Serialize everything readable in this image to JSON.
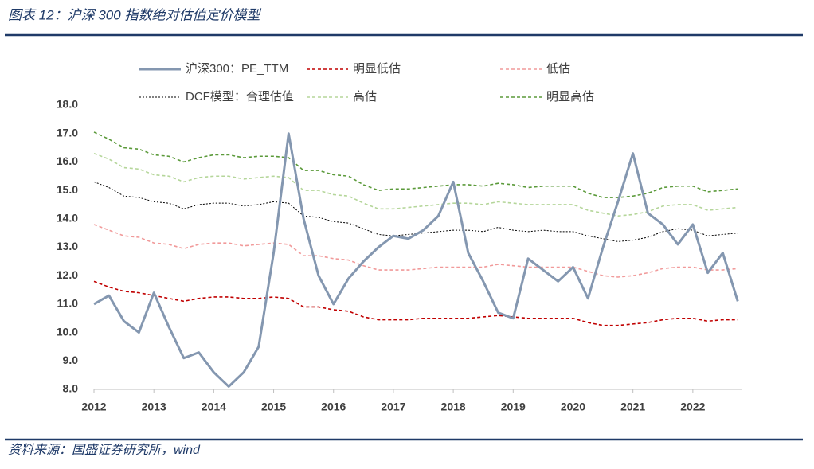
{
  "chart_data": {
    "type": "line",
    "title": "图表 12：沪深 300 指数绝对估值定价模型",
    "source": "资料来源：国盛证券研究所，wind",
    "x": [
      2012.0,
      2012.25,
      2012.5,
      2012.75,
      2013.0,
      2013.25,
      2013.5,
      2013.75,
      2014.0,
      2014.25,
      2014.5,
      2014.75,
      2015.0,
      2015.25,
      2015.5,
      2015.75,
      2016.0,
      2016.25,
      2016.5,
      2016.75,
      2017.0,
      2017.25,
      2017.5,
      2017.75,
      2018.0,
      2018.25,
      2018.5,
      2018.75,
      2019.0,
      2019.25,
      2019.5,
      2019.75,
      2020.0,
      2020.25,
      2020.5,
      2020.75,
      2021.0,
      2021.25,
      2021.5,
      2021.75,
      2022.0,
      2022.25,
      2022.5,
      2022.75
    ],
    "xlim": [
      2012,
      2022.8
    ],
    "xticks": [
      2012,
      2013,
      2014,
      2015,
      2016,
      2017,
      2018,
      2019,
      2020,
      2021,
      2022
    ],
    "ylim": [
      8,
      18
    ],
    "yticks": [
      {
        "value": 8,
        "label": "8.0"
      },
      {
        "value": 9,
        "label": "9.0"
      },
      {
        "value": 10,
        "label": "10.0"
      },
      {
        "value": 11,
        "label": "11.0"
      },
      {
        "value": 12,
        "label": "12.0"
      },
      {
        "value": 13,
        "label": "13.0"
      },
      {
        "value": 14,
        "label": "14.0"
      },
      {
        "value": 15,
        "label": "15.0"
      },
      {
        "value": 16,
        "label": "16.0"
      },
      {
        "value": 17,
        "label": "17.0"
      },
      {
        "value": 18,
        "label": "18.0"
      }
    ],
    "grid": false,
    "series": [
      {
        "name": "沪深300：PE_TTM",
        "color": "#8497b0",
        "line_style": "solid",
        "values": [
          11.0,
          11.3,
          10.4,
          10.0,
          11.4,
          10.2,
          9.1,
          9.3,
          8.6,
          8.1,
          8.6,
          9.5,
          12.8,
          17.0,
          14.0,
          12.0,
          11.0,
          11.9,
          12.5,
          13.0,
          13.4,
          13.3,
          13.6,
          14.1,
          15.3,
          12.8,
          11.8,
          10.7,
          10.5,
          12.6,
          12.2,
          11.8,
          12.3,
          11.2,
          13.0,
          14.6,
          16.3,
          14.2,
          13.8,
          13.1,
          13.8,
          12.1,
          12.8,
          11.1
        ]
      },
      {
        "name": "明显低估",
        "color": "#c00000",
        "line_style": "dashed",
        "values": [
          11.8,
          11.6,
          11.45,
          11.4,
          11.3,
          11.2,
          11.1,
          11.2,
          11.25,
          11.25,
          11.2,
          11.2,
          11.25,
          11.2,
          10.9,
          10.9,
          10.8,
          10.75,
          10.55,
          10.45,
          10.45,
          10.45,
          10.5,
          10.5,
          10.5,
          10.5,
          10.55,
          10.6,
          10.55,
          10.5,
          10.5,
          10.5,
          10.5,
          10.35,
          10.25,
          10.25,
          10.3,
          10.35,
          10.45,
          10.5,
          10.5,
          10.4,
          10.45,
          10.45
        ]
      },
      {
        "name": "低估",
        "color": "#f19a9a",
        "line_style": "dashed",
        "values": [
          13.8,
          13.6,
          13.4,
          13.35,
          13.15,
          13.1,
          12.95,
          13.1,
          13.15,
          13.15,
          13.05,
          13.1,
          13.15,
          13.1,
          12.7,
          12.7,
          12.6,
          12.55,
          12.35,
          12.2,
          12.2,
          12.2,
          12.25,
          12.3,
          12.3,
          12.3,
          12.3,
          12.4,
          12.35,
          12.3,
          12.3,
          12.3,
          12.3,
          12.15,
          12.0,
          11.95,
          12.0,
          12.1,
          12.25,
          12.3,
          12.3,
          12.2,
          12.2,
          12.25
        ]
      },
      {
        "name": "DCF模型：合理估值",
        "color": "#000000",
        "line_style": "dotted",
        "values": [
          15.3,
          15.1,
          14.8,
          14.75,
          14.6,
          14.55,
          14.35,
          14.5,
          14.55,
          14.55,
          14.45,
          14.5,
          14.6,
          14.55,
          14.1,
          14.05,
          13.9,
          13.85,
          13.65,
          13.45,
          13.4,
          13.45,
          13.5,
          13.55,
          13.6,
          13.6,
          13.55,
          13.7,
          13.6,
          13.55,
          13.6,
          13.55,
          13.55,
          13.4,
          13.3,
          13.2,
          13.25,
          13.35,
          13.55,
          13.65,
          13.6,
          13.4,
          13.45,
          13.5
        ]
      },
      {
        "name": "高估",
        "color": "#b5d69a",
        "line_style": "dashed",
        "values": [
          16.3,
          16.1,
          15.8,
          15.75,
          15.55,
          15.5,
          15.3,
          15.45,
          15.5,
          15.5,
          15.4,
          15.45,
          15.5,
          15.45,
          15.0,
          15.0,
          14.85,
          14.8,
          14.55,
          14.35,
          14.35,
          14.4,
          14.45,
          14.5,
          14.55,
          14.55,
          14.5,
          14.6,
          14.55,
          14.5,
          14.5,
          14.5,
          14.5,
          14.3,
          14.2,
          14.1,
          14.15,
          14.25,
          14.45,
          14.5,
          14.5,
          14.3,
          14.35,
          14.4
        ]
      },
      {
        "name": "明显高估",
        "color": "#5b9a3a",
        "line_style": "dashed",
        "values": [
          17.05,
          16.8,
          16.5,
          16.45,
          16.25,
          16.2,
          16.0,
          16.15,
          16.25,
          16.25,
          16.15,
          16.2,
          16.2,
          16.15,
          15.7,
          15.7,
          15.55,
          15.5,
          15.2,
          15.0,
          15.05,
          15.05,
          15.1,
          15.15,
          15.2,
          15.2,
          15.15,
          15.25,
          15.2,
          15.1,
          15.15,
          15.15,
          15.15,
          14.9,
          14.75,
          14.75,
          14.8,
          14.9,
          15.1,
          15.15,
          15.15,
          14.95,
          15.0,
          15.05
        ]
      }
    ]
  }
}
